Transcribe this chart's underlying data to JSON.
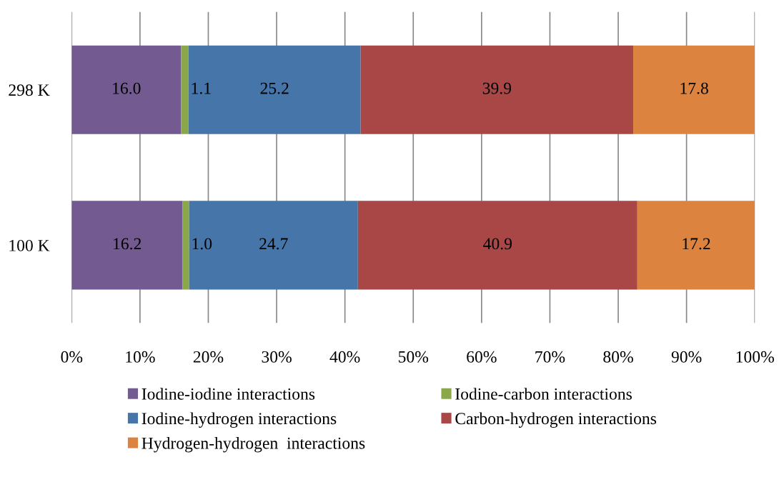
{
  "chart_data": {
    "type": "bar",
    "orientation": "horizontal",
    "stacked": true,
    "categories": [
      "298 K",
      "100 K"
    ],
    "series": [
      {
        "name": "Iodine-iodine interactions",
        "color": "#735a91",
        "values": [
          16.0,
          16.2
        ],
        "value_labels": [
          "16.0",
          "16.2"
        ]
      },
      {
        "name": "Iodine-carbon interactions",
        "color": "#8aa74c",
        "values": [
          1.1,
          1.0
        ],
        "value_labels": [
          "1.1",
          "1.0"
        ]
      },
      {
        "name": "Iodine-hydrogen interactions",
        "color": "#4575a9",
        "values": [
          25.2,
          24.7
        ],
        "value_labels": [
          "25.2",
          "24.7"
        ]
      },
      {
        "name": "Carbon-hydrogen interactions",
        "color": "#a84746",
        "values": [
          39.9,
          40.9
        ],
        "value_labels": [
          "39.9",
          "40.9"
        ]
      },
      {
        "name": "Hydrogen-hydrogen  interactions",
        "color": "#dc843f",
        "values": [
          17.8,
          17.2
        ],
        "value_labels": [
          "17.8",
          "17.2"
        ]
      }
    ],
    "xlim": [
      0,
      100
    ],
    "xticks": [
      {
        "value": 0,
        "label": "0%"
      },
      {
        "value": 10,
        "label": "10%"
      },
      {
        "value": 20,
        "label": "20%"
      },
      {
        "value": 30,
        "label": "30%"
      },
      {
        "value": 40,
        "label": "40%"
      },
      {
        "value": 50,
        "label": "50%"
      },
      {
        "value": 60,
        "label": "60%"
      },
      {
        "value": 70,
        "label": "70%"
      },
      {
        "value": 80,
        "label": "80%"
      },
      {
        "value": 90,
        "label": "90%"
      },
      {
        "value": 100,
        "label": "100%"
      }
    ],
    "grid": "x",
    "legend": "bottom"
  }
}
